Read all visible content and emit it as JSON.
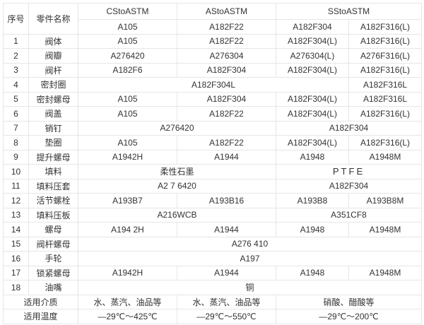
{
  "header": {
    "no": "序号",
    "part": "零件名称",
    "cs": "CStoASTM",
    "as": "AStoASTM",
    "ss": "SStoASTM",
    "sub": [
      "A105",
      "A182F22",
      "A182F304",
      "A182F316(L)"
    ]
  },
  "rows": [
    {
      "no": "1",
      "part": "阀体",
      "c": [
        "A105",
        "A182F22",
        "A182F304(L)",
        "A182F316(L)"
      ]
    },
    {
      "no": "2",
      "part": "阀瓣",
      "c": [
        "A276420",
        "A276304",
        "A276304(L)",
        "A276F316(L)"
      ]
    },
    {
      "no": "3",
      "part": "阀杆",
      "c": [
        "A182F6",
        "A182F304",
        "A182F304(L)",
        "A182F316(L)"
      ]
    },
    {
      "no": "4",
      "part": "密封圈",
      "c": [
        "A182F304L",
        "A182F316L"
      ]
    },
    {
      "no": "5",
      "part": "密封螺母",
      "c": [
        "A105",
        "A182F304",
        "A182F304(L)",
        "A182F316L"
      ]
    },
    {
      "no": "6",
      "part": "阀盖",
      "c": [
        "A105",
        "A182F22",
        "A182F304(L)",
        "A182F316(L)"
      ]
    },
    {
      "no": "7",
      "part": "销钉",
      "c": [
        "A276420",
        "A182F304"
      ]
    },
    {
      "no": "8",
      "part": "垫圈",
      "c": [
        "A105",
        "A182F22",
        "A182F304(L)",
        "A182F316(L)"
      ]
    },
    {
      "no": "9",
      "part": "提升螺母",
      "c": [
        "A1942H",
        "A1944",
        "A1948",
        "A1948M"
      ]
    },
    {
      "no": "10",
      "part": "填料",
      "c": [
        "柔性石墨",
        "PTFE"
      ]
    },
    {
      "no": "11",
      "part": "填料压套",
      "c": [
        "A2 7 6420",
        "A182F304"
      ]
    },
    {
      "no": "12",
      "part": "活节螺栓",
      "c": [
        "A193B7",
        "A193B16",
        "A193B8",
        "A193B8M"
      ]
    },
    {
      "no": "13",
      "part": "填料压板",
      "c": [
        "A216WCB",
        "A351CF8"
      ]
    },
    {
      "no": "14",
      "part": "螺母",
      "c": [
        "A194 2H",
        "A1944",
        "A1948",
        "A1948M"
      ]
    },
    {
      "no": "15",
      "part": "阀杆螺母",
      "c": [
        "A276 410"
      ]
    },
    {
      "no": "16",
      "part": "手轮",
      "c": [
        "A197"
      ]
    },
    {
      "no": "17",
      "part": "锁紧螺母",
      "c": [
        "A1942H",
        "A1944",
        "A1948",
        "A1948M"
      ]
    },
    {
      "no": "18",
      "part": "油嘴",
      "c": [
        "铜"
      ]
    }
  ],
  "media": {
    "label": "适用介质",
    "cs": "水、蒸汽、油品等",
    "as": "水、蒸汽、油品等",
    "ss": "硝酸、醋酸等"
  },
  "temp": {
    "label": "适用温度",
    "cs": "—29℃～425℃",
    "as": "—29℃～550℃",
    "ss": "—29℃～200℃"
  }
}
